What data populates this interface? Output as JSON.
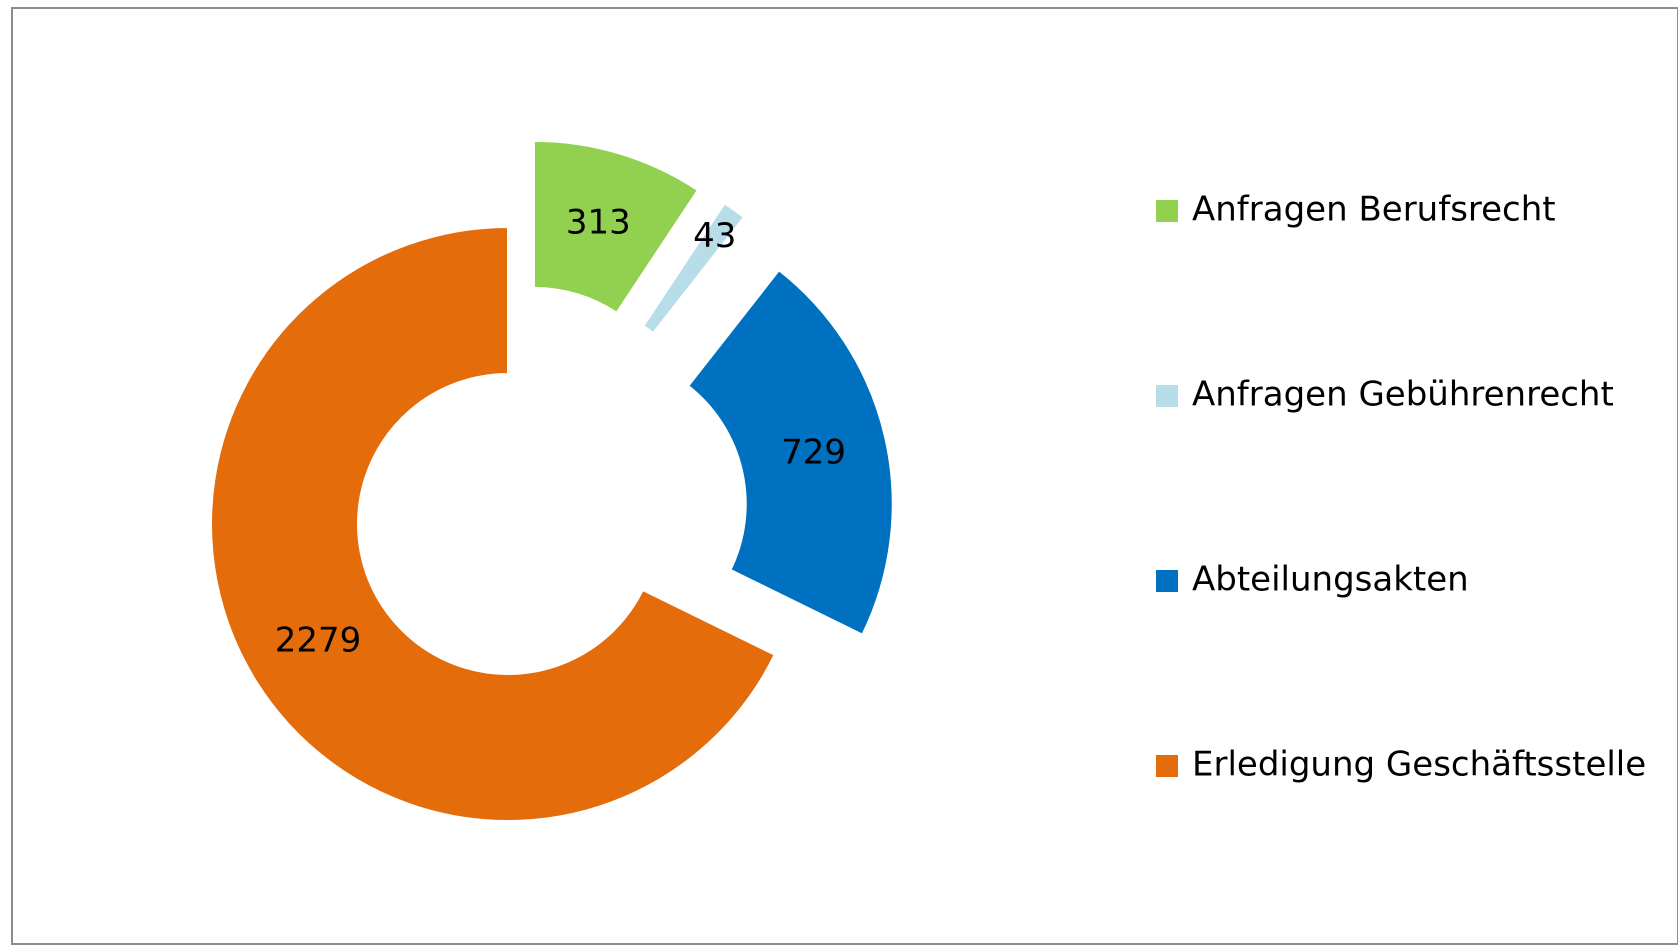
{
  "chart_data": {
    "type": "donut",
    "categories": [
      "Anfragen Berufsrecht",
      "Anfragen Gebührenrecht",
      "Abteilungsakten",
      "Erledigung Geschäftsstelle"
    ],
    "values": [
      313,
      43,
      729,
      2279
    ],
    "colors": [
      "#92d050",
      "#b7dde8",
      "#0070c0",
      "#e46c0a"
    ],
    "legend": "right"
  }
}
